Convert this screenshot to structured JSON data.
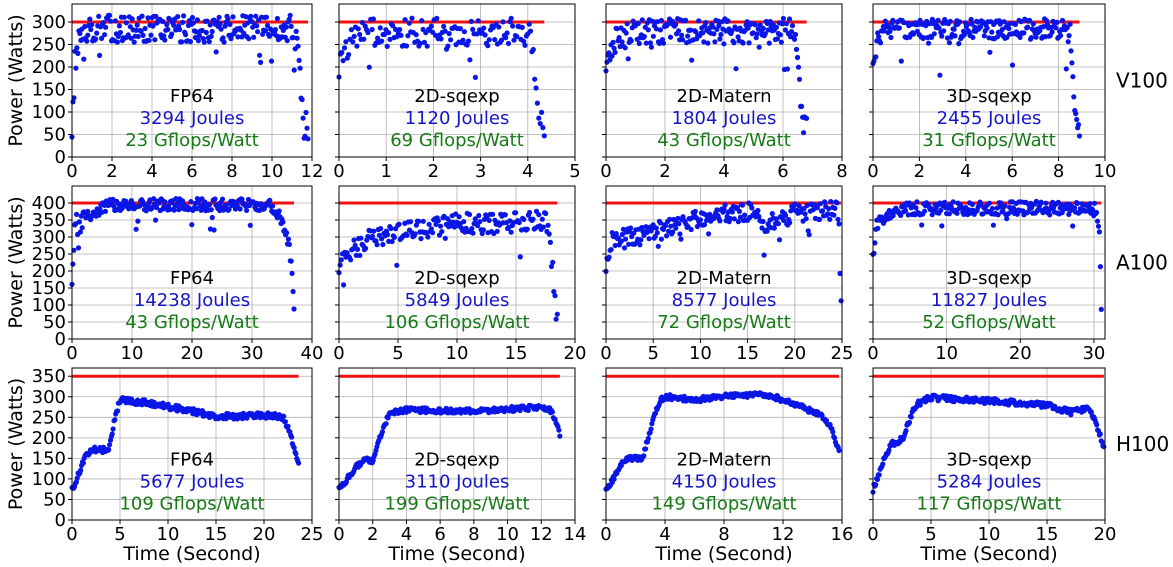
{
  "colors": {
    "power": "#0a16e6",
    "tdp": "#ee1111",
    "joules": "#1414c8",
    "gflops": "#177a17",
    "grid": "#b0b0b0",
    "axis": "#000000"
  },
  "ylabel": "Power (Watts)",
  "xlabel": "Time (Second)",
  "rows": [
    {
      "gpu": "V100",
      "ylim": [
        0,
        340
      ],
      "yticks": [
        0,
        50,
        100,
        150,
        200,
        250,
        300
      ],
      "tdp": 300
    },
    {
      "gpu": "A100",
      "ylim": [
        0,
        450
      ],
      "yticks": [
        0,
        50,
        100,
        150,
        200,
        250,
        300,
        350,
        400
      ],
      "tdp": 400
    },
    {
      "gpu": "H100",
      "ylim": [
        0,
        370
      ],
      "yticks": [
        0,
        50,
        100,
        150,
        200,
        250,
        300,
        350
      ],
      "tdp": 350
    }
  ],
  "chart_data": [
    {
      "type": "scatter",
      "gpu": "V100",
      "kernel": "FP64",
      "energy": "3294 Joules",
      "efficiency": "23 Gflops/Watt",
      "xlim": [
        0,
        12
      ],
      "xticks": [
        0,
        2,
        4,
        6,
        8,
        10,
        12
      ],
      "ylim": [
        0,
        340
      ],
      "tdp": 300,
      "profile": [
        [
          0,
          60
        ],
        [
          0.15,
          210
        ],
        [
          0.5,
          285
        ],
        [
          11.0,
          285
        ],
        [
          11.3,
          250
        ],
        [
          11.5,
          120
        ],
        [
          11.6,
          70
        ],
        [
          11.8,
          68
        ]
      ],
      "noise": 30,
      "n": 240
    },
    {
      "type": "scatter",
      "gpu": "V100",
      "kernel": "2D-sqexp",
      "energy": "1120 Joules",
      "efficiency": "69 Gflops/Watt",
      "xlim": [
        0,
        5
      ],
      "xticks": [
        0,
        1,
        2,
        3,
        4,
        5
      ],
      "ylim": [
        0,
        340
      ],
      "tdp": 300,
      "profile": [
        [
          0,
          190
        ],
        [
          0.1,
          230
        ],
        [
          0.3,
          275
        ],
        [
          4.0,
          280
        ],
        [
          4.1,
          250
        ],
        [
          4.2,
          120
        ],
        [
          4.3,
          68
        ],
        [
          4.35,
          66
        ]
      ],
      "noise": 32,
      "n": 150
    },
    {
      "type": "scatter",
      "gpu": "V100",
      "kernel": "2D-Matern",
      "energy": "1804 Joules",
      "efficiency": "43 Gflops/Watt",
      "xlim": [
        0,
        8
      ],
      "xticks": [
        0,
        2,
        4,
        6,
        8
      ],
      "ylim": [
        0,
        340
      ],
      "tdp": 300,
      "profile": [
        [
          0,
          210
        ],
        [
          0.3,
          260
        ],
        [
          1.0,
          280
        ],
        [
          6.4,
          280
        ],
        [
          6.5,
          240
        ],
        [
          6.6,
          100
        ],
        [
          6.7,
          70
        ],
        [
          6.8,
          68
        ]
      ],
      "noise": 28,
      "n": 200
    },
    {
      "type": "scatter",
      "gpu": "V100",
      "kernel": "3D-sqexp",
      "energy": "2455 Joules",
      "efficiency": "31 Gflops/Watt",
      "xlim": [
        0,
        10
      ],
      "xticks": [
        0,
        2,
        4,
        6,
        8,
        10
      ],
      "ylim": [
        0,
        340
      ],
      "tdp": 300,
      "profile": [
        [
          0,
          210
        ],
        [
          0.2,
          260
        ],
        [
          0.6,
          285
        ],
        [
          8.5,
          285
        ],
        [
          8.6,
          200
        ],
        [
          8.7,
          110
        ],
        [
          8.8,
          70
        ],
        [
          8.9,
          68
        ]
      ],
      "noise": 22,
      "n": 220
    },
    {
      "type": "scatter",
      "gpu": "A100",
      "kernel": "FP64",
      "energy": "14238 Joules",
      "efficiency": "43 Gflops/Watt",
      "xlim": [
        0,
        40
      ],
      "xticks": [
        0,
        10,
        20,
        30,
        40
      ],
      "ylim": [
        0,
        450
      ],
      "tdp": 400,
      "profile": [
        [
          0,
          160
        ],
        [
          0.5,
          350
        ],
        [
          3,
          365
        ],
        [
          6,
          395
        ],
        [
          33,
          395
        ],
        [
          35,
          350
        ],
        [
          36,
          290
        ],
        [
          36.5,
          230
        ],
        [
          37,
          95
        ]
      ],
      "noise": 18,
      "n": 240
    },
    {
      "type": "scatter",
      "gpu": "A100",
      "kernel": "2D-sqexp",
      "energy": "5849 Joules",
      "efficiency": "106 Gflops/Watt",
      "xlim": [
        0,
        20
      ],
      "xticks": [
        0,
        5,
        10,
        15,
        20
      ],
      "ylim": [
        0,
        450
      ],
      "tdp": 400,
      "profile": [
        [
          0,
          190
        ],
        [
          0.3,
          230
        ],
        [
          1,
          260
        ],
        [
          3,
          300
        ],
        [
          8,
          330
        ],
        [
          10,
          345
        ],
        [
          12,
          335
        ],
        [
          15,
          345
        ],
        [
          17.5,
          350
        ],
        [
          18,
          280
        ],
        [
          18.2,
          130
        ],
        [
          18.5,
          90
        ]
      ],
      "noise": 30,
      "n": 190
    },
    {
      "type": "scatter",
      "gpu": "A100",
      "kernel": "2D-Matern",
      "energy": "8577 Joules",
      "efficiency": "72 Gflops/Watt",
      "xlim": [
        0,
        25
      ],
      "xticks": [
        0,
        5,
        10,
        15,
        20,
        25
      ],
      "ylim": [
        0,
        450
      ],
      "tdp": 400,
      "profile": [
        [
          0,
          190
        ],
        [
          0.5,
          290
        ],
        [
          3,
          300
        ],
        [
          7,
          330
        ],
        [
          11,
          360
        ],
        [
          15,
          375
        ],
        [
          17,
          340
        ],
        [
          20,
          370
        ],
        [
          24.5,
          380
        ],
        [
          24.7,
          320
        ],
        [
          24.9,
          90
        ]
      ],
      "noise": 28,
      "n": 230
    },
    {
      "type": "scatter",
      "gpu": "A100",
      "kernel": "3D-sqexp",
      "energy": "11827 Joules",
      "efficiency": "52 Gflops/Watt",
      "xlim": [
        0,
        31.5
      ],
      "xticks": [
        0,
        10,
        20,
        30
      ],
      "ylim": [
        0,
        450
      ],
      "tdp": 400,
      "profile": [
        [
          0,
          240
        ],
        [
          0.5,
          340
        ],
        [
          2,
          365
        ],
        [
          5,
          385
        ],
        [
          30,
          385
        ],
        [
          30.5,
          360
        ],
        [
          30.8,
          300
        ],
        [
          31.0,
          95
        ]
      ],
      "noise": 20,
      "n": 240
    },
    {
      "type": "scatter",
      "gpu": "H100",
      "kernel": "FP64",
      "energy": "5677 Joules",
      "efficiency": "109 Gflops/Watt",
      "xlim": [
        0,
        25
      ],
      "xticks": [
        0,
        5,
        10,
        15,
        20,
        25
      ],
      "ylim": [
        0,
        370
      ],
      "tdp": 350,
      "profile": [
        [
          0,
          75
        ],
        [
          0.5,
          100
        ],
        [
          1,
          130
        ],
        [
          1.5,
          160
        ],
        [
          2,
          170
        ],
        [
          3.8,
          172
        ],
        [
          4.5,
          250
        ],
        [
          5,
          292
        ],
        [
          8,
          285
        ],
        [
          12,
          268
        ],
        [
          15,
          252
        ],
        [
          21,
          255
        ],
        [
          22,
          250
        ],
        [
          22.8,
          205
        ],
        [
          23.3,
          160
        ],
        [
          23.6,
          135
        ]
      ],
      "noise": 7,
      "n": 260
    },
    {
      "type": "scatter",
      "gpu": "H100",
      "kernel": "2D-sqexp",
      "energy": "3110 Joules",
      "efficiency": "199 Gflops/Watt",
      "xlim": [
        0,
        14
      ],
      "xticks": [
        0,
        2,
        4,
        6,
        8,
        10,
        12,
        14
      ],
      "ylim": [
        0,
        370
      ],
      "tdp": 350,
      "profile": [
        [
          0,
          75
        ],
        [
          0.5,
          100
        ],
        [
          1,
          130
        ],
        [
          1.5,
          145
        ],
        [
          2,
          145
        ],
        [
          2.5,
          210
        ],
        [
          3,
          260
        ],
        [
          4,
          268
        ],
        [
          8,
          265
        ],
        [
          11,
          272
        ],
        [
          12,
          275
        ],
        [
          12.5,
          270
        ],
        [
          12.9,
          240
        ],
        [
          13.1,
          208
        ]
      ],
      "noise": 6,
      "n": 240
    },
    {
      "type": "scatter",
      "gpu": "H100",
      "kernel": "2D-Matern",
      "energy": "4150 Joules",
      "efficiency": "149 Gflops/Watt",
      "xlim": [
        0,
        16
      ],
      "xticks": [
        0,
        4,
        8,
        12,
        16
      ],
      "ylim": [
        0,
        370
      ],
      "tdp": 350,
      "profile": [
        [
          0,
          70
        ],
        [
          0.5,
          100
        ],
        [
          1,
          135
        ],
        [
          1.5,
          150
        ],
        [
          2.5,
          150
        ],
        [
          3,
          220
        ],
        [
          3.4,
          270
        ],
        [
          3.8,
          295
        ],
        [
          4.2,
          300
        ],
        [
          6,
          292
        ],
        [
          8,
          302
        ],
        [
          11,
          305
        ],
        [
          13,
          280
        ],
        [
          14.5,
          255
        ],
        [
          15.2,
          230
        ],
        [
          15.8,
          165
        ]
      ],
      "noise": 6,
      "n": 260
    },
    {
      "type": "scatter",
      "gpu": "H100",
      "kernel": "3D-sqexp",
      "energy": "5284 Joules",
      "efficiency": "117 Gflops/Watt",
      "xlim": [
        0,
        20
      ],
      "xticks": [
        0,
        5,
        10,
        15,
        20
      ],
      "ylim": [
        0,
        370
      ],
      "tdp": 350,
      "profile": [
        [
          0,
          75
        ],
        [
          0.5,
          110
        ],
        [
          1,
          150
        ],
        [
          1.5,
          185
        ],
        [
          2.5,
          195
        ],
        [
          3,
          230
        ],
        [
          3.5,
          270
        ],
        [
          4,
          285
        ],
        [
          5,
          298
        ],
        [
          10,
          290
        ],
        [
          15,
          280
        ],
        [
          17,
          262
        ],
        [
          18.5,
          270
        ],
        [
          19.2,
          240
        ],
        [
          19.6,
          205
        ],
        [
          19.9,
          180
        ]
      ],
      "noise": 7,
      "n": 260
    }
  ]
}
